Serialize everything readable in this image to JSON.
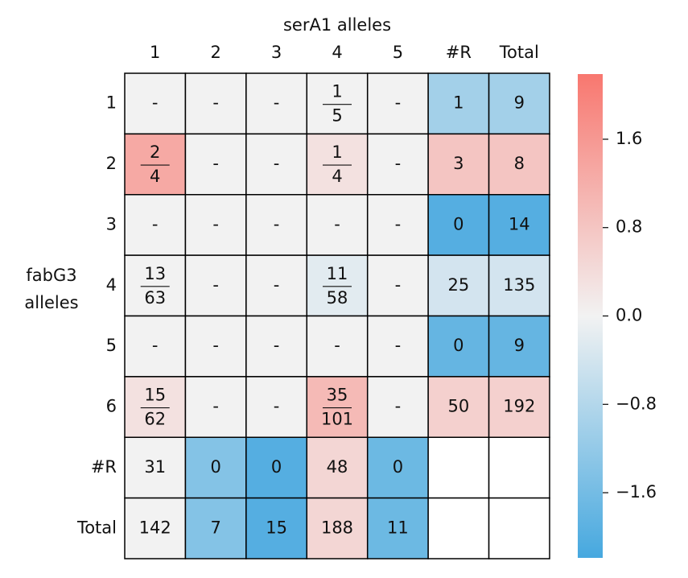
{
  "chart_data": {
    "type": "heatmap",
    "x_label": "serA1 alleles",
    "y_label": [
      "fabG3",
      "alleles"
    ],
    "columns": [
      "1",
      "2",
      "3",
      "4",
      "5",
      "#R",
      "Total"
    ],
    "rows": [
      "1",
      "2",
      "3",
      "4",
      "5",
      "6",
      "#R",
      "Total"
    ],
    "z": [
      [
        0,
        0,
        0,
        0,
        0,
        -1.0,
        -1.0
      ],
      [
        1.3,
        0,
        0,
        0.3,
        0,
        0.8,
        0.8
      ],
      [
        0,
        0,
        0,
        0,
        0,
        -2.0,
        -2.0
      ],
      [
        0,
        0,
        0,
        -0.2,
        0,
        -0.4,
        -0.4
      ],
      [
        0,
        0,
        0,
        0,
        0,
        -1.8,
        -1.8
      ],
      [
        0.3,
        0,
        0,
        1.0,
        0,
        0.6,
        0.6
      ],
      [
        0,
        -1.4,
        -2.0,
        0.5,
        -1.7,
        null,
        null
      ],
      [
        0,
        -1.4,
        -2.0,
        0.5,
        -1.7,
        null,
        null
      ]
    ],
    "labels": [
      [
        "-",
        "-",
        "-",
        {
          "numerator": 1,
          "denominator": 5
        },
        "-",
        1,
        9
      ],
      [
        {
          "numerator": 2,
          "denominator": 4
        },
        "-",
        "-",
        {
          "numerator": 1,
          "denominator": 4
        },
        "-",
        3,
        8
      ],
      [
        "-",
        "-",
        "-",
        "-",
        "-",
        0,
        14
      ],
      [
        {
          "numerator": 13,
          "denominator": 63
        },
        "-",
        "-",
        {
          "numerator": 11,
          "denominator": 58
        },
        "-",
        25,
        135
      ],
      [
        "-",
        "-",
        "-",
        "-",
        "-",
        0,
        9
      ],
      [
        {
          "numerator": 15,
          "denominator": 62
        },
        "-",
        "-",
        {
          "numerator": 35,
          "denominator": 101
        },
        "-",
        50,
        192
      ],
      [
        31,
        0,
        0,
        48,
        0,
        null,
        null
      ],
      [
        142,
        7,
        15,
        188,
        11,
        null,
        null
      ]
    ],
    "zlim": [
      -2.19,
      2.19
    ],
    "zticks": [
      {
        "value": -1.6,
        "label": "−1.6"
      },
      {
        "value": -0.8,
        "label": "−0.8"
      },
      {
        "value": 0,
        "label": "0.0"
      },
      0.8,
      1.6
    ],
    "colors": {
      "low": "#46a8df",
      "mid": "#f2f2f2",
      "high": "#f8776f"
    }
  }
}
